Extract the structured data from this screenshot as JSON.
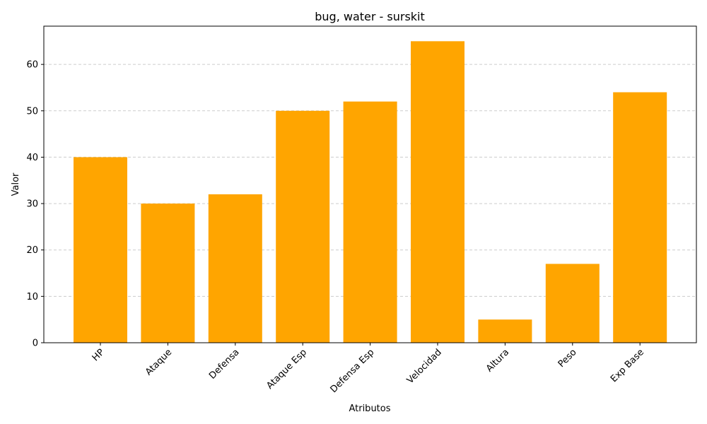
{
  "chart_data": {
    "type": "bar",
    "title": "bug, water - surskit",
    "xlabel": "Atributos",
    "ylabel": "Valor",
    "categories": [
      "HP",
      "Ataque",
      "Defensa",
      "Ataque Esp",
      "Defensa Esp",
      "Velocidad",
      "Altura",
      "Peso",
      "Exp Base"
    ],
    "values": [
      40,
      30,
      32,
      50,
      52,
      65,
      5,
      17,
      54
    ],
    "ylim": [
      0,
      68.25
    ],
    "yticks": [
      0,
      10,
      20,
      30,
      40,
      50,
      60
    ],
    "grid": "y-dashed",
    "legend": "none",
    "bar_color": "#FFA500",
    "xtick_rotation": 45
  }
}
